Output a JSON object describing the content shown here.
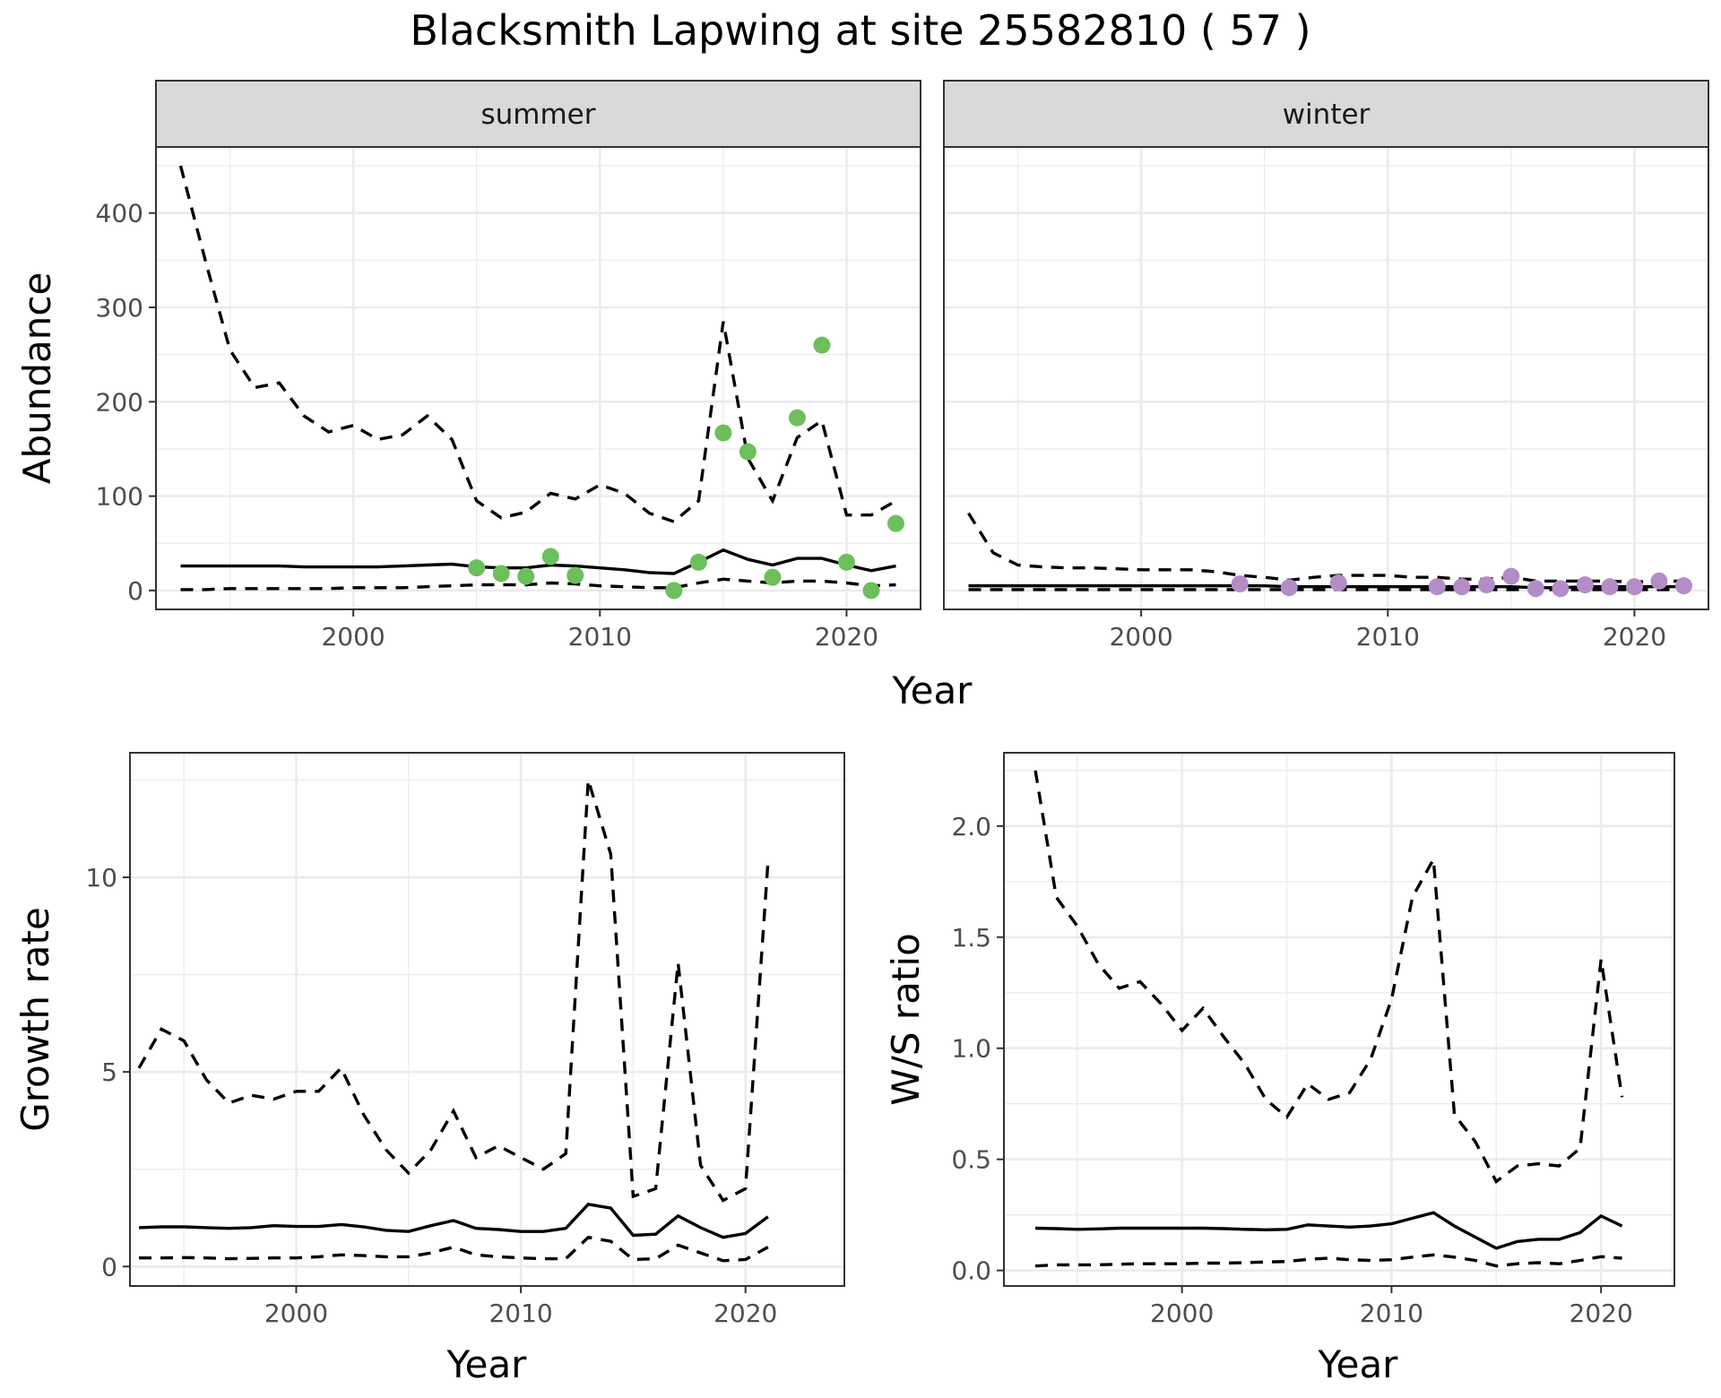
{
  "figure": {
    "title": "Blacksmith Lapwing at site 25582810 ( 57 )"
  },
  "chart_data": [
    {
      "type": "line",
      "facet": "summer",
      "xlabel": "Year",
      "ylabel": "Abundance",
      "xlim": [
        1992,
        2023
      ],
      "ylim": [
        -20,
        470
      ],
      "xticks": [
        2000,
        2010,
        2020
      ],
      "yticks": [
        0,
        100,
        200,
        300,
        400
      ],
      "grid": true,
      "point_color": "#6DBF5C",
      "x": [
        1993,
        1994,
        1995,
        1996,
        1997,
        1998,
        1999,
        2000,
        2001,
        2002,
        2003,
        2004,
        2005,
        2006,
        2007,
        2008,
        2009,
        2010,
        2011,
        2012,
        2013,
        2014,
        2015,
        2016,
        2017,
        2018,
        2019,
        2020,
        2021,
        2022
      ],
      "series": [
        {
          "style": "solid",
          "values": [
            26,
            26,
            26,
            26,
            26,
            25,
            25,
            25,
            25,
            26,
            27,
            28,
            25,
            24,
            24,
            27,
            26,
            24,
            22,
            19,
            18,
            30,
            43,
            33,
            27,
            34,
            34,
            27,
            21,
            26
          ]
        },
        {
          "style": "dashed",
          "values": [
            450,
            350,
            255,
            215,
            220,
            185,
            168,
            175,
            160,
            165,
            185,
            160,
            95,
            77,
            83,
            103,
            97,
            112,
            103,
            82,
            73,
            95,
            285,
            140,
            95,
            162,
            180,
            80,
            80,
            95
          ]
        },
        {
          "style": "dashed",
          "values": [
            1,
            1,
            2,
            2,
            2,
            2,
            2,
            3,
            3,
            3,
            4,
            5,
            6,
            6,
            6,
            8,
            7,
            5,
            4,
            3,
            3,
            8,
            12,
            10,
            8,
            10,
            10,
            8,
            5,
            6
          ]
        }
      ],
      "points": {
        "x": [
          2005,
          2006,
          2007,
          2008,
          2009,
          2013,
          2014,
          2015,
          2016,
          2017,
          2018,
          2019,
          2020,
          2021,
          2022
        ],
        "y": [
          24,
          18,
          15,
          36,
          16,
          0,
          30,
          167,
          147,
          14,
          183,
          260,
          30,
          0,
          71
        ]
      }
    },
    {
      "type": "line",
      "facet": "winter",
      "xlabel": "Year",
      "ylabel": "Abundance",
      "xlim": [
        1992,
        2023
      ],
      "ylim": [
        -20,
        470
      ],
      "xticks": [
        2000,
        2010,
        2020
      ],
      "yticks": [
        0,
        100,
        200,
        300,
        400
      ],
      "grid": true,
      "point_color": "#B48CC8",
      "x": [
        1993,
        1994,
        1995,
        1996,
        1997,
        1998,
        1999,
        2000,
        2001,
        2002,
        2003,
        2004,
        2005,
        2006,
        2007,
        2008,
        2009,
        2010,
        2011,
        2012,
        2013,
        2014,
        2015,
        2016,
        2017,
        2018,
        2019,
        2020,
        2021,
        2022
      ],
      "series": [
        {
          "style": "solid",
          "values": [
            5,
            5,
            5,
            5,
            5,
            5,
            5,
            5,
            5,
            5,
            5,
            5,
            5,
            4,
            4,
            4,
            4,
            4,
            4,
            4,
            4,
            4,
            4,
            3,
            3,
            4,
            4,
            4,
            4,
            4
          ]
        },
        {
          "style": "dashed",
          "values": [
            82,
            40,
            27,
            25,
            24,
            24,
            23,
            22,
            22,
            22,
            20,
            16,
            14,
            11,
            14,
            16,
            16,
            16,
            14,
            14,
            12,
            12,
            14,
            10,
            10,
            10,
            10,
            9,
            10,
            10
          ]
        },
        {
          "style": "dashed",
          "values": [
            1,
            1,
            1,
            1,
            1,
            1,
            1,
            1,
            1,
            1,
            1,
            1,
            1,
            1,
            1,
            1,
            1,
            1,
            1,
            1,
            1,
            1,
            1,
            1,
            1,
            1,
            1,
            1,
            1,
            1
          ]
        }
      ],
      "points": {
        "x": [
          2004,
          2006,
          2008,
          2012,
          2013,
          2014,
          2015,
          2016,
          2017,
          2018,
          2019,
          2020,
          2021,
          2022
        ],
        "y": [
          7,
          3,
          8,
          4,
          4,
          6,
          15,
          2,
          2,
          6,
          4,
          4,
          10,
          5
        ]
      }
    },
    {
      "type": "line",
      "facet": "",
      "xlabel": "Year",
      "ylabel": "Growth rate",
      "xlim": [
        1992.6,
        2024.4
      ],
      "ylim": [
        -0.5,
        13.2
      ],
      "xticks": [
        2000,
        2010,
        2020
      ],
      "yticks": [
        0,
        5,
        10
      ],
      "grid": true,
      "x": [
        1993,
        1994,
        1995,
        1996,
        1997,
        1998,
        1999,
        2000,
        2001,
        2002,
        2003,
        2004,
        2005,
        2006,
        2007,
        2008,
        2009,
        2010,
        2011,
        2012,
        2013,
        2014,
        2015,
        2016,
        2017,
        2018,
        2019,
        2020,
        2021
      ],
      "series": [
        {
          "style": "solid",
          "values": [
            1.0,
            1.02,
            1.02,
            1.0,
            0.98,
            1.0,
            1.05,
            1.03,
            1.03,
            1.08,
            1.02,
            0.93,
            0.9,
            1.05,
            1.18,
            0.98,
            0.95,
            0.9,
            0.9,
            0.98,
            1.6,
            1.5,
            0.8,
            0.83,
            1.3,
            1.0,
            0.75,
            0.85,
            1.28
          ]
        },
        {
          "style": "dashed",
          "values": [
            5.1,
            6.1,
            5.8,
            4.8,
            4.2,
            4.4,
            4.3,
            4.5,
            4.5,
            5.1,
            3.9,
            3.0,
            2.4,
            3.0,
            4.0,
            2.8,
            3.1,
            2.8,
            2.5,
            2.9,
            12.5,
            10.6,
            1.8,
            2.0,
            7.8,
            2.6,
            1.7,
            2.0,
            10.4
          ]
        },
        {
          "style": "dashed",
          "values": [
            0.22,
            0.22,
            0.23,
            0.22,
            0.2,
            0.21,
            0.22,
            0.22,
            0.25,
            0.3,
            0.28,
            0.25,
            0.25,
            0.35,
            0.5,
            0.3,
            0.25,
            0.22,
            0.2,
            0.2,
            0.75,
            0.65,
            0.18,
            0.2,
            0.55,
            0.35,
            0.15,
            0.18,
            0.5
          ]
        }
      ]
    },
    {
      "type": "line",
      "facet": "",
      "xlabel": "Year",
      "ylabel": "W/S ratio",
      "xlim": [
        1991.5,
        2023.5
      ],
      "ylim": [
        -0.07,
        2.33
      ],
      "xticks": [
        2000,
        2010,
        2020
      ],
      "yticks": [
        0.0,
        0.5,
        1.0,
        1.5,
        2.0
      ],
      "ytick_labels": [
        "0.0",
        "0.5",
        "1.0",
        "1.5",
        "2.0"
      ],
      "grid": true,
      "x": [
        1993,
        1994,
        1995,
        1996,
        1997,
        1998,
        1999,
        2000,
        2001,
        2002,
        2003,
        2004,
        2005,
        2006,
        2007,
        2008,
        2009,
        2010,
        2011,
        2012,
        2013,
        2014,
        2015,
        2016,
        2017,
        2018,
        2019,
        2020,
        2021
      ],
      "series": [
        {
          "style": "solid",
          "values": [
            0.19,
            0.188,
            0.185,
            0.187,
            0.19,
            0.19,
            0.19,
            0.19,
            0.19,
            0.188,
            0.185,
            0.183,
            0.185,
            0.205,
            0.2,
            0.195,
            0.2,
            0.21,
            0.235,
            0.26,
            0.2,
            0.15,
            0.1,
            0.13,
            0.14,
            0.14,
            0.17,
            0.245,
            0.2
          ]
        },
        {
          "style": "dashed",
          "values": [
            2.25,
            1.68,
            1.55,
            1.38,
            1.27,
            1.3,
            1.2,
            1.08,
            1.18,
            1.05,
            0.93,
            0.77,
            0.69,
            0.84,
            0.77,
            0.8,
            0.95,
            1.22,
            1.68,
            1.85,
            0.7,
            0.58,
            0.4,
            0.47,
            0.48,
            0.47,
            0.55,
            1.4,
            0.78
          ]
        },
        {
          "style": "dashed",
          "values": [
            0.02,
            0.025,
            0.025,
            0.025,
            0.028,
            0.03,
            0.03,
            0.03,
            0.033,
            0.033,
            0.035,
            0.038,
            0.04,
            0.05,
            0.055,
            0.048,
            0.045,
            0.048,
            0.06,
            0.07,
            0.06,
            0.045,
            0.02,
            0.03,
            0.035,
            0.03,
            0.045,
            0.062,
            0.055
          ]
        }
      ]
    }
  ]
}
